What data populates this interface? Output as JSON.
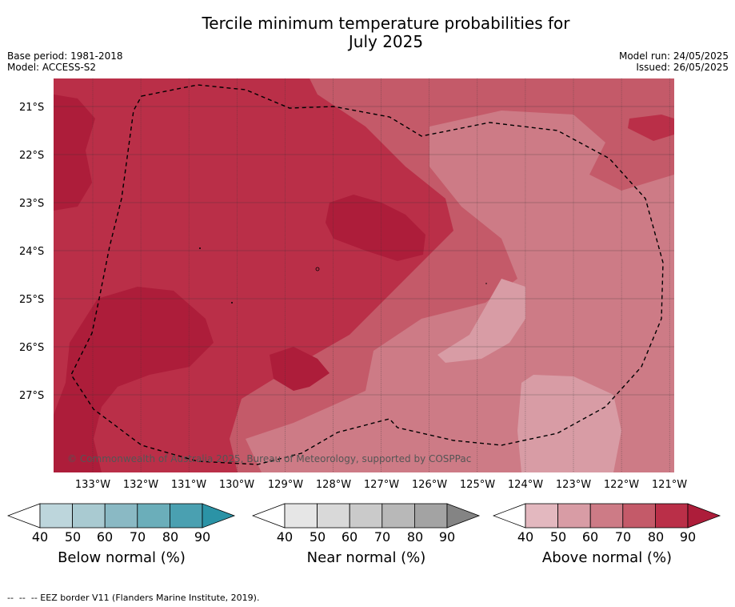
{
  "title_line1": "Tercile minimum temperature probabilities for",
  "title_line2": "July 2025",
  "base_period": "Base period: 1981-2018",
  "model": "Model: ACCESS-S2",
  "model_run": "Model run: 24/05/2025",
  "issued": "Issued: 26/05/2025",
  "credit": "© Commonwealth of Australia 2025, Bureau of Meteorology, supported by COSPPac",
  "lat_labels": [
    "21°S",
    "22°S",
    "23°S",
    "24°S",
    "25°S",
    "26°S",
    "27°S"
  ],
  "lon_labels": [
    "133°W",
    "132°W",
    "131°W",
    "130°W",
    "129°W",
    "128°W",
    "127°W",
    "126°W",
    "125°W",
    "124°W",
    "123°W",
    "122°W",
    "121°W"
  ],
  "colorbars": [
    {
      "label": "Below normal (%)",
      "ticks": [
        "40",
        "50",
        "60",
        "70",
        "80",
        "90"
      ],
      "colors": [
        "#bdd6dc",
        "#a9cad1",
        "#8ab9c4",
        "#6baeba",
        "#4aa0b1",
        "#2b93a6"
      ]
    },
    {
      "label": "Near normal (%)",
      "ticks": [
        "40",
        "50",
        "60",
        "70",
        "80",
        "90"
      ],
      "colors": [
        "#e6e6e6",
        "#d9d9d9",
        "#cacaca",
        "#b8b8b8",
        "#a3a3a3",
        "#848484"
      ]
    },
    {
      "label": "Above normal (%)",
      "ticks": [
        "40",
        "50",
        "60",
        "70",
        "80",
        "90"
      ],
      "colors": [
        "#e3b8bf",
        "#d89ca5",
        "#cd7b86",
        "#c45a69",
        "#ba2f48",
        "#ad1d3a"
      ]
    }
  ],
  "map_colors": {
    "p50": "#d89ca5",
    "p60": "#cd7b86",
    "p70": "#c45a69",
    "p80": "#ba2f48",
    "p90": "#ad1d3a"
  },
  "footnote": "--  --  -- EEZ border V11 (Flanders Marine Institute, 2019)."
}
